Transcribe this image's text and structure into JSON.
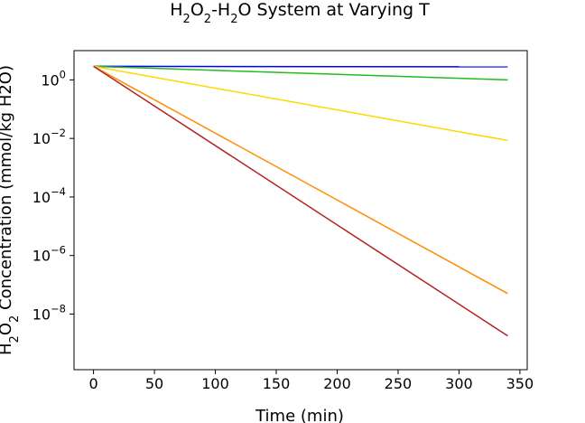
{
  "chart_data": {
    "type": "line",
    "title": {
      "parts": [
        {
          "text": "H",
          "sub": false
        },
        {
          "text": "2",
          "sub": true
        },
        {
          "text": "O",
          "sub": false
        },
        {
          "text": "2",
          "sub": true
        },
        {
          "text": "-H",
          "sub": false
        },
        {
          "text": "2",
          "sub": true
        },
        {
          "text": "O System at Varying T",
          "sub": false
        }
      ]
    },
    "xlabel": "Time (min)",
    "ylabel": {
      "parts": [
        {
          "text": "H",
          "sub": false
        },
        {
          "text": "2",
          "sub": true
        },
        {
          "text": "O",
          "sub": false
        },
        {
          "text": "2",
          "sub": true
        },
        {
          "text": " Concentration (mmol/kg H2O)",
          "sub": false
        }
      ]
    },
    "yscale": "log",
    "xlim": [
      -16,
      356
    ],
    "ylim_log10": [
      -9.9,
      1.0
    ],
    "xticks": [
      0,
      50,
      100,
      150,
      200,
      250,
      300,
      350
    ],
    "yticks": [
      {
        "base": "10",
        "exp": "0",
        "log10": 0
      },
      {
        "base": "10",
        "exp": "−2",
        "log10": -2
      },
      {
        "base": "10",
        "exp": "−4",
        "log10": -4
      },
      {
        "base": "10",
        "exp": "−6",
        "log10": -6
      },
      {
        "base": "10",
        "exp": "−8",
        "log10": -8
      }
    ],
    "grid": false,
    "legend": "none",
    "series": [
      {
        "color": "#0000ff",
        "x": [
          0,
          340
        ],
        "y": [
          2.9,
          2.8
        ]
      },
      {
        "color": "#22bb22",
        "x": [
          0,
          340
        ],
        "y": [
          2.9,
          1.0
        ]
      },
      {
        "color": "#ffd700",
        "x": [
          0,
          340
        ],
        "y": [
          2.9,
          0.0085
        ]
      },
      {
        "color": "#ff8c00",
        "x": [
          0,
          340
        ],
        "y": [
          2.9,
          5e-08
        ]
      },
      {
        "color": "#b22222",
        "x": [
          0,
          340
        ],
        "y": [
          2.9,
          1.8e-09
        ]
      }
    ]
  }
}
